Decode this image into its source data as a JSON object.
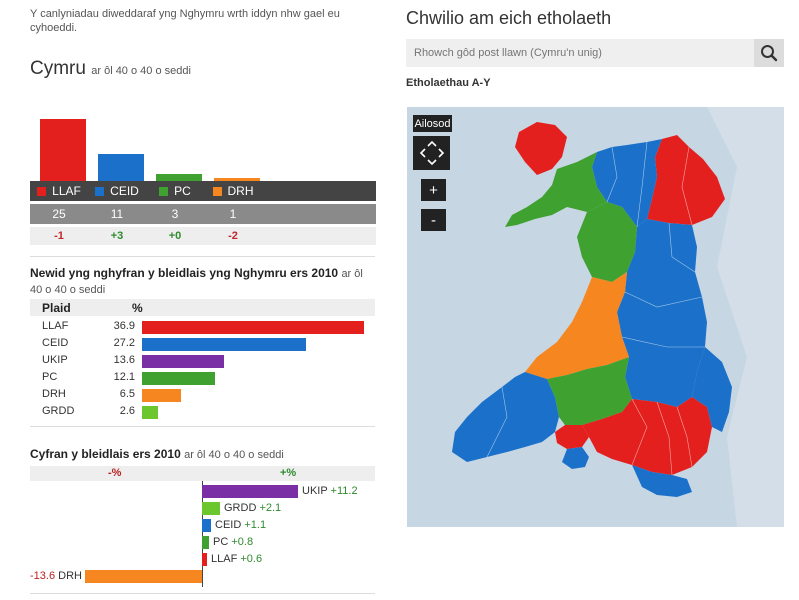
{
  "intro": "Y canlyniadau diweddaraf yng Nghymru wrth iddyn nhw gael eu cyhoeddi.",
  "seats": {
    "title": "Cymru",
    "subtitle": "ar ôl 40 o 40 o seddi",
    "parties": [
      {
        "name": "LLAF",
        "seats": "25",
        "change": "-1",
        "color": "#e4201f",
        "seats_num": 25
      },
      {
        "name": "CEID",
        "seats": "11",
        "change": "+3",
        "color": "#1b71c9",
        "seats_num": 11
      },
      {
        "name": "PC",
        "seats": "3",
        "change": "+0",
        "color": "#3fa130",
        "seats_num": 3
      },
      {
        "name": "DRH",
        "seats": "1",
        "change": "-2",
        "color": "#f6861f",
        "seats_num": 1
      }
    ]
  },
  "vote_share": {
    "title": "Newid yng nghyfran y bleidlais yng Nghymru ers 2010",
    "subtitle": "ar ôl 40 o 40 o seddi",
    "col_party": "Plaid",
    "col_pct": "%",
    "rows": [
      {
        "name": "LLAF",
        "value": "36.9",
        "num": 36.9,
        "color": "#e4201f"
      },
      {
        "name": "CEID",
        "value": "27.2",
        "num": 27.2,
        "color": "#1b71c9"
      },
      {
        "name": "UKIP",
        "value": "13.6",
        "num": 13.6,
        "color": "#7a2fa4"
      },
      {
        "name": "PC",
        "value": "12.1",
        "num": 12.1,
        "color": "#3fa130"
      },
      {
        "name": "DRH",
        "value": "6.5",
        "num": 6.5,
        "color": "#f6861f"
      },
      {
        "name": "GRDD",
        "value": "2.6",
        "num": 2.6,
        "color": "#6cc72f"
      }
    ]
  },
  "swing": {
    "title": "Cyfran y bleidlais ers 2010",
    "subtitle": "ar ôl 40 o 40 o seddi",
    "neg_label": "-%",
    "pos_label": "+%",
    "rows": [
      {
        "name": "UKIP",
        "value": "+11.2",
        "num": 11.2,
        "color": "#7a2fa4"
      },
      {
        "name": "GRDD",
        "value": "+2.1",
        "num": 2.1,
        "color": "#6cc72f"
      },
      {
        "name": "CEID",
        "value": "+1.1",
        "num": 1.1,
        "color": "#1b71c9"
      },
      {
        "name": "PC",
        "value": "+0.8",
        "num": 0.8,
        "color": "#3fa130"
      },
      {
        "name": "LLAF",
        "value": "+0.6",
        "num": 0.6,
        "color": "#e4201f"
      },
      {
        "name": "DRH",
        "value": "-13.6",
        "num": -13.6,
        "color": "#f6861f"
      }
    ]
  },
  "search": {
    "title": "Chwilio am eich etholaeth",
    "placeholder": "Rhowch gôd post llawn (Cymru'n unig)",
    "button_icon": "search-icon"
  },
  "constituencies_link": "Etholaethau A-Y",
  "map_controls": {
    "reset": "Ailosod",
    "pan_icon": "pan-arrows-icon",
    "zoom_in": "+",
    "zoom_out": "-"
  }
}
